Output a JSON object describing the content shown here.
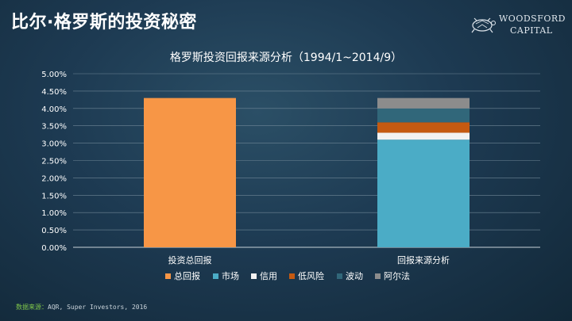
{
  "slide": {
    "title": "比尔·格罗斯的投资秘密",
    "logo": {
      "line1": "WOODSFORD",
      "line2": "CAPITAL"
    },
    "source_label": "数据来源：",
    "source_text": "AQR, Super Investors, 2016"
  },
  "chart_data": {
    "type": "bar",
    "stacked": true,
    "title": "格罗斯投资回报来源分析（1994/1~2014/9）",
    "xlabel": "",
    "ylabel": "",
    "ylim": [
      0,
      0.05
    ],
    "yticks": [
      "0.00%",
      "0.50%",
      "1.00%",
      "1.50%",
      "2.00%",
      "2.50%",
      "3.00%",
      "3.50%",
      "4.00%",
      "4.50%",
      "5.00%"
    ],
    "categories": [
      "投资总回报",
      "回报来源分析"
    ],
    "grid": true,
    "legend_position": "bottom",
    "series": [
      {
        "name": "总回报",
        "color": "#f79646",
        "values": [
          0.043,
          0
        ]
      },
      {
        "name": "市场",
        "color": "#4bacc6",
        "values": [
          0,
          0.031
        ]
      },
      {
        "name": "信用",
        "color": "#f2f2f2",
        "values": [
          0,
          0.002
        ]
      },
      {
        "name": "低风险",
        "color": "#c55a11",
        "values": [
          0,
          0.003
        ]
      },
      {
        "name": "波动",
        "color": "#31677a",
        "values": [
          0,
          0.004
        ]
      },
      {
        "name": "阿尔法",
        "color": "#8c8c8c",
        "values": [
          0,
          0.003
        ]
      }
    ]
  }
}
